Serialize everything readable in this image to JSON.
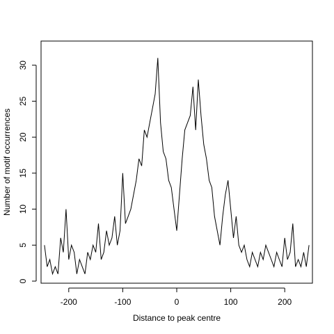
{
  "chart_data": {
    "type": "line",
    "title": "",
    "xlabel": "Distance to peak centre",
    "ylabel": "Number of motif occurrences",
    "xlim": [
      -250,
      250
    ],
    "ylim": [
      0,
      32
    ],
    "x_ticks": [
      -200,
      -100,
      0,
      100,
      200
    ],
    "y_ticks": [
      0,
      5,
      10,
      15,
      20,
      25,
      30
    ],
    "x_tick_labels": [
      "-200",
      "-100",
      "0",
      "100",
      "200"
    ],
    "y_tick_labels": [
      "0",
      "5",
      "10",
      "15",
      "20",
      "25",
      "30"
    ],
    "grid": false,
    "legend": "none",
    "line_color": "#000000",
    "series": [
      {
        "x": [
          -245,
          -240,
          -235,
          -230,
          -225,
          -220,
          -215,
          -210,
          -205,
          -200,
          -195,
          -190,
          -185,
          -180,
          -175,
          -170,
          -165,
          -160,
          -155,
          -150,
          -145,
          -140,
          -135,
          -130,
          -125,
          -120,
          -115,
          -110,
          -105,
          -100,
          -95,
          -90,
          -85,
          -80,
          -75,
          -70,
          -65,
          -60,
          -55,
          -50,
          -45,
          -40,
          -35,
          -30,
          -25,
          -20,
          -15,
          -10,
          -5,
          0,
          5,
          10,
          15,
          20,
          25,
          30,
          35,
          40,
          45,
          50,
          55,
          60,
          65,
          70,
          75,
          80,
          85,
          90,
          95,
          100,
          105,
          110,
          115,
          120,
          125,
          130,
          135,
          140,
          145,
          150,
          155,
          160,
          165,
          170,
          175,
          180,
          185,
          190,
          195,
          200,
          205,
          210,
          215,
          220,
          225,
          230,
          235,
          240,
          245
        ],
        "y": [
          5,
          2,
          3,
          1,
          2,
          1,
          6,
          4,
          10,
          3,
          5,
          4,
          1,
          3,
          2,
          1,
          4,
          3,
          5,
          4,
          8,
          3,
          4,
          7,
          5,
          6,
          9,
          5,
          7,
          15,
          8,
          9,
          10,
          12,
          14,
          17,
          16,
          21,
          20,
          22,
          24,
          26,
          31,
          22,
          18,
          17,
          14,
          13,
          10,
          7,
          12,
          17,
          21,
          22,
          23,
          27,
          21,
          28,
          23,
          19,
          17,
          14,
          13,
          9,
          7,
          5,
          9,
          12,
          14,
          10,
          6,
          9,
          5,
          4,
          5,
          3,
          2,
          4,
          3,
          2,
          4,
          3,
          5,
          4,
          3,
          2,
          4,
          3,
          2,
          6,
          3,
          4,
          8,
          2,
          3,
          2,
          4,
          2,
          5
        ]
      }
    ]
  }
}
